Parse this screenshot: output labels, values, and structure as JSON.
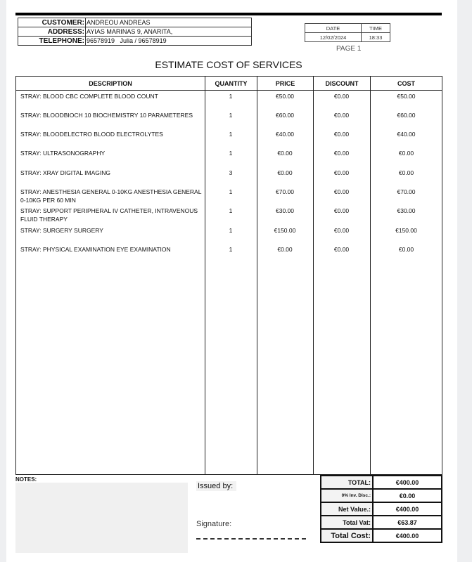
{
  "customer": {
    "customer_label": "CUSTOMER:",
    "customer": "ANDREOU ANDREAS",
    "address_label": "ADDRESS:",
    "address": "AYIAS MARINAS 9, ANARITA,",
    "telephone_label": "TELEPHONE:",
    "telephone": "96578919   Julia / 96578919"
  },
  "meta": {
    "date_label": "DATE",
    "time_label": "TIME",
    "date": "12/02/2024",
    "time": "18:33",
    "page": "PAGE 1"
  },
  "title": "ESTIMATE COST OF SERVICES",
  "columns": [
    "DESCRIPTION",
    "QUANTITY",
    "PRICE",
    "DISCOUNT",
    "COST"
  ],
  "items": [
    {
      "description": "STRAY: BLOOD CBC  COMPLETE BLOOD COUNT",
      "quantity": "1",
      "price": "€50.00",
      "discount": "€0.00",
      "cost": "€50.00"
    },
    {
      "description": "STRAY: BLOODBIOCH 10  BIOCHEMISTRY 10 PARAMETERES",
      "quantity": "1",
      "price": "€60.00",
      "discount": "€0.00",
      "cost": "€60.00"
    },
    {
      "description": "STRAY: BLOODELECTRO  BLOOD ELECTROLYTES",
      "quantity": "1",
      "price": "€40.00",
      "discount": "€0.00",
      "cost": "€40.00"
    },
    {
      "description": "STRAY: ULTRASONOGRAPHY",
      "quantity": "1",
      "price": "€0.00",
      "discount": "€0.00",
      "cost": "€0.00"
    },
    {
      "description": "STRAY: XRAY  DIGITAL IMAGING",
      "quantity": "3",
      "price": "€0.00",
      "discount": "€0.00",
      "cost": "€0.00"
    },
    {
      "description": "STRAY: ANESTHESIA GENERAL 0-10KG  ANESTHESIA GENERAL 0-10KG PER 60 MIN",
      "quantity": "1",
      "price": "€70.00",
      "discount": "€0.00",
      "cost": "€70.00"
    },
    {
      "description": "STRAY: SUPPORT  PERIPHERAL IV CATHETER, INTRAVENOUS FLUID THERAPY",
      "quantity": "1",
      "price": "€30.00",
      "discount": "€0.00",
      "cost": "€30.00"
    },
    {
      "description": "STRAY: SURGERY  SURGERY",
      "quantity": "1",
      "price": "€150.00",
      "discount": "€0.00",
      "cost": "€150.00"
    },
    {
      "description": "STRAY: PHYSICAL EXAMINATION  EYE EXAMINATION",
      "quantity": "1",
      "price": "€0.00",
      "discount": "€0.00",
      "cost": "€0.00"
    }
  ],
  "footer": {
    "notes_label": "NOTES:",
    "issued_by": "Issued by:",
    "signature": "Signature:"
  },
  "totals": [
    {
      "label": "TOTAL:",
      "value": "€400.00"
    },
    {
      "label": "0%  Inv. Disc.:",
      "value": "€0.00"
    },
    {
      "label": "Net Value.:",
      "value": "€400.00"
    },
    {
      "label": "Total Vat:",
      "value": "€63.87"
    },
    {
      "label": "Total Cost:",
      "value": "€400.00"
    }
  ]
}
